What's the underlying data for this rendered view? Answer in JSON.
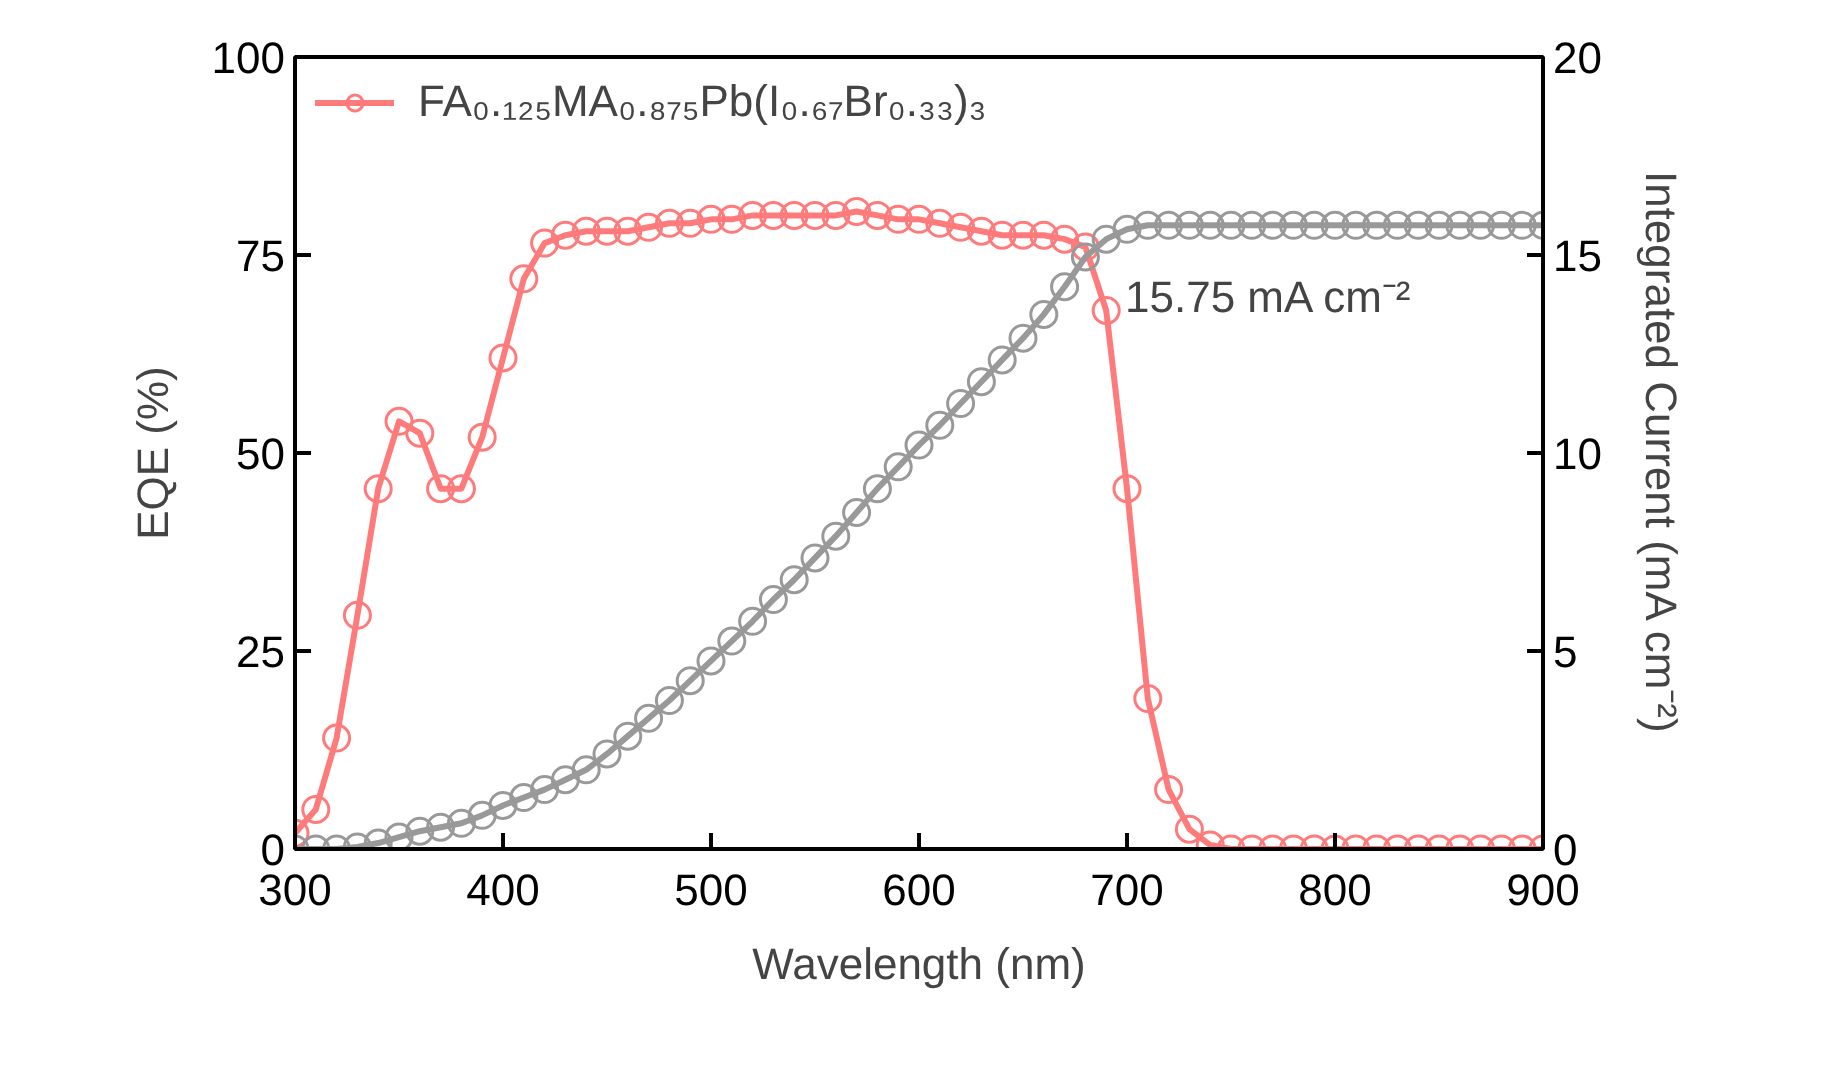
{
  "chart_data": {
    "type": "line",
    "xlabel": "Wavelength (nm)",
    "ylabel": "EQE (%)",
    "y2label": "Integrated Current (mA cm⁻²)",
    "x": [
      300,
      310,
      320,
      330,
      340,
      350,
      360,
      370,
      380,
      390,
      400,
      410,
      420,
      430,
      440,
      450,
      460,
      470,
      480,
      490,
      500,
      510,
      520,
      530,
      540,
      550,
      560,
      570,
      580,
      590,
      600,
      610,
      620,
      630,
      640,
      650,
      660,
      670,
      680,
      690,
      700,
      710,
      720,
      730,
      740,
      750,
      760,
      770,
      780,
      790,
      800,
      810,
      820,
      830,
      840,
      850,
      860,
      870,
      880,
      890,
      900
    ],
    "series": [
      {
        "name": "FA₀.₁₂₅MA₀.₈₇₅Pb(I₀.₆₇Br₀.₃₃)₃",
        "color": "#ff7b7b",
        "values": [
          2,
          5,
          14,
          29.5,
          45.5,
          54,
          52.5,
          45.5,
          45.5,
          52,
          62,
          72,
          76.5,
          77.5,
          78,
          78,
          78,
          78.5,
          79,
          79,
          79.5,
          79.5,
          80,
          80,
          80,
          80,
          80,
          80.5,
          80,
          79.5,
          79.5,
          79,
          78.5,
          78,
          77.5,
          77.5,
          77.5,
          77,
          76,
          68,
          45.5,
          19,
          7.5,
          2.5,
          0.5,
          0,
          0,
          0,
          0,
          0,
          0,
          0,
          0,
          0,
          0,
          0,
          0,
          0,
          0,
          0,
          0
        ]
      },
      {
        "color": "#999999",
        "axis": "y2",
        "values": [
          0,
          0,
          0,
          0.05,
          0.15,
          0.3,
          0.45,
          0.55,
          0.65,
          0.85,
          1.1,
          1.3,
          1.5,
          1.75,
          2.0,
          2.4,
          2.85,
          3.3,
          3.75,
          4.25,
          4.75,
          5.25,
          5.75,
          6.3,
          6.8,
          7.35,
          7.9,
          8.5,
          9.1,
          9.65,
          10.2,
          10.7,
          11.25,
          11.8,
          12.35,
          12.9,
          13.5,
          14.2,
          14.95,
          15.4,
          15.65,
          15.75,
          15.75,
          15.75,
          15.75,
          15.75,
          15.75,
          15.75,
          15.75,
          15.75,
          15.75,
          15.75,
          15.75,
          15.75,
          15.75,
          15.75,
          15.75,
          15.75,
          15.75,
          15.75,
          15.75
        ]
      }
    ],
    "annotations": [
      "15.75 mA cm⁻²"
    ],
    "xlim": [
      300,
      900
    ],
    "xticks": [
      300,
      400,
      500,
      600,
      700,
      800,
      900
    ],
    "ylim": [
      0,
      100
    ],
    "yticks": [
      0,
      25,
      50,
      75,
      100
    ],
    "y2lim": [
      0,
      20
    ],
    "y2ticks": [
      0,
      5,
      10,
      15,
      20
    ],
    "marker": "circle",
    "line_style": "solid",
    "legend": "top left",
    "grid": false
  }
}
